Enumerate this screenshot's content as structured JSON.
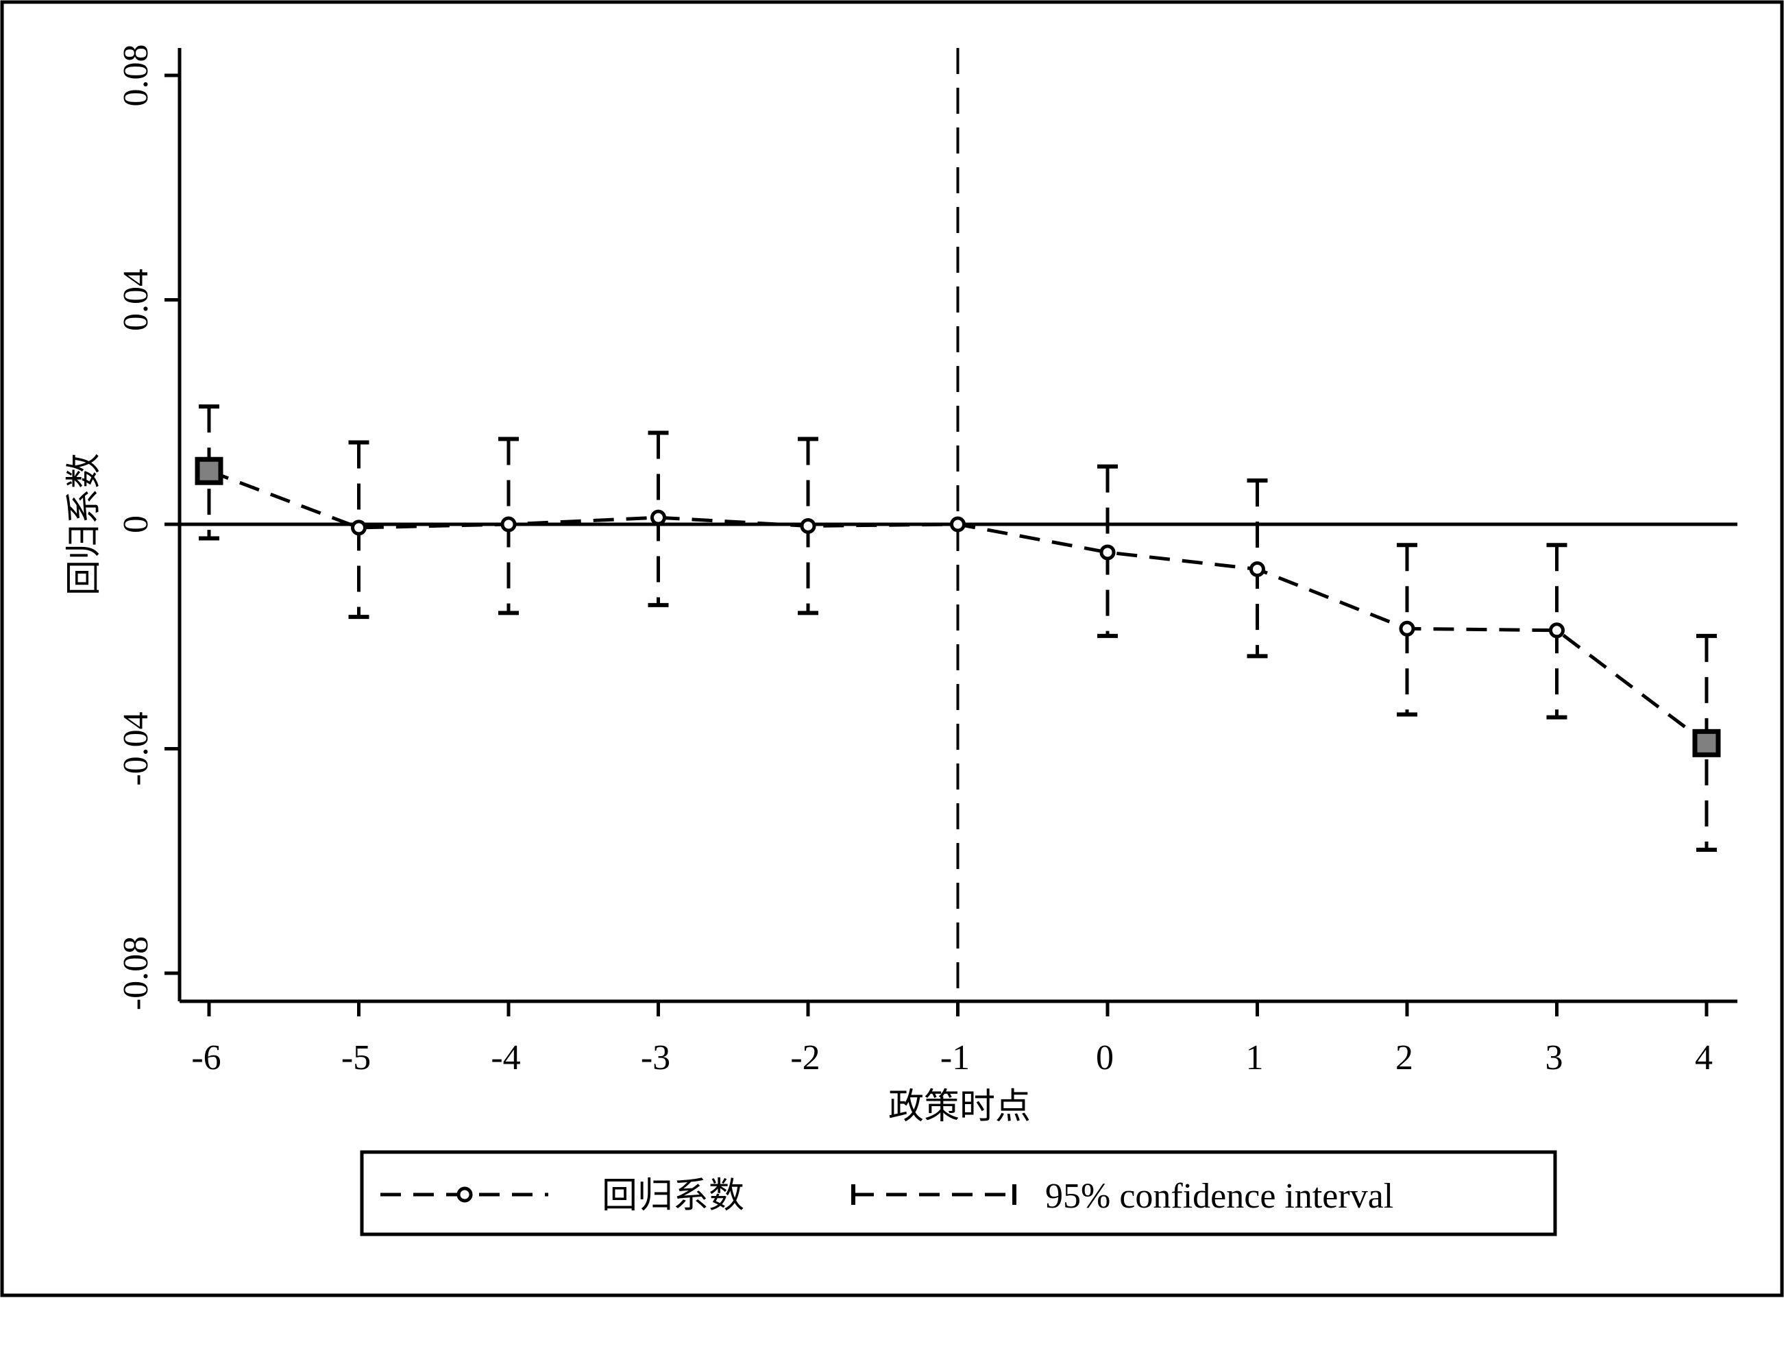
{
  "chart_data": {
    "type": "line",
    "title": "",
    "xlabel": "政策时点",
    "ylabel": "回归系数",
    "x": [
      -6,
      -5,
      -4,
      -3,
      -2,
      -1,
      0,
      1,
      2,
      3,
      4
    ],
    "x_tick_labels": [
      "-6",
      "-5",
      "-4",
      "-3",
      "-2",
      "-1",
      "0",
      "1",
      "2",
      "3",
      "4"
    ],
    "y_ticks": [
      0.08,
      0.04,
      0,
      -0.04,
      -0.08
    ],
    "y_tick_labels": [
      "0.08",
      "0.04",
      "0",
      "-0.04",
      "-0.08"
    ],
    "ylim": [
      -0.085,
      0.09
    ],
    "reference_lines": {
      "horizontal_y": 0,
      "vertical_x": -1
    },
    "series": [
      {
        "name": "回归系数",
        "style": "dashed line with hollow markers; endpoints as gray squares",
        "values": [
          0.0095,
          -0.0006,
          0.0,
          0.0012,
          -0.0003,
          0.0,
          -0.005,
          -0.008,
          -0.0186,
          -0.0189,
          -0.039
        ]
      },
      {
        "name": "95% confidence interval",
        "style": "dashed capped error bars",
        "upper": [
          0.021,
          0.0146,
          0.0152,
          0.0163,
          0.0152,
          null,
          0.0103,
          0.0078,
          -0.0037,
          -0.0037,
          -0.0199
        ],
        "lower": [
          -0.0025,
          -0.0165,
          -0.0158,
          -0.0144,
          -0.0158,
          null,
          -0.0199,
          -0.0235,
          -0.0339,
          -0.0344,
          -0.058
        ]
      }
    ],
    "legend": {
      "placement": "bottom",
      "entries": [
        "回归系数",
        "95% confidence interval"
      ]
    },
    "grid": false,
    "colors": {
      "line": "#000000",
      "marker_fill": "#808080"
    }
  }
}
